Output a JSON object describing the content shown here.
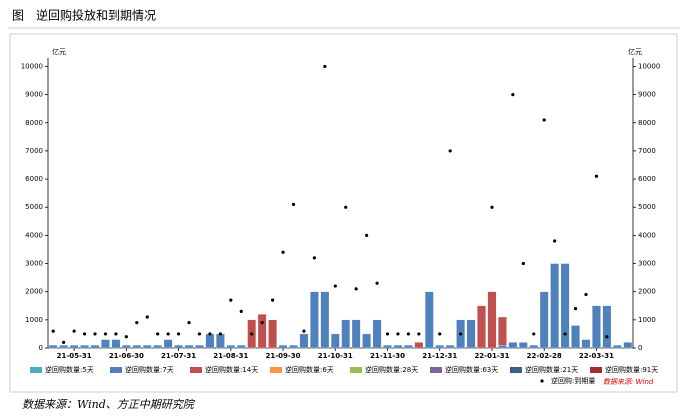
{
  "header": {
    "title": "图　逆回购投放和到期情况"
  },
  "chart_data": {
    "type": "bar",
    "y_unit": "亿元",
    "y2_unit": "亿元",
    "source_note": "数据来源: Wind",
    "categories": [
      null,
      null,
      "21-05-31",
      null,
      null,
      null,
      null,
      "21-06-30",
      null,
      null,
      null,
      null,
      "21-07-31",
      null,
      null,
      null,
      null,
      "21-08-31",
      null,
      null,
      null,
      null,
      "21-09-30",
      null,
      null,
      null,
      null,
      "21-10-31",
      null,
      null,
      null,
      null,
      "21-11-30",
      null,
      null,
      null,
      null,
      "21-12-31",
      null,
      null,
      null,
      null,
      "22-01-31",
      null,
      null,
      null,
      null,
      "22-02-28",
      null,
      null,
      null,
      null,
      "22-03-31",
      null,
      null,
      null
    ],
    "ylim": [
      0,
      10300
    ],
    "yticks": [
      0,
      1000,
      2000,
      3000,
      4000,
      5000,
      6000,
      7000,
      8000,
      9000,
      10000
    ],
    "y2lim": [
      0,
      10300
    ],
    "y2ticks": [
      0,
      1000,
      2000,
      3000,
      4000,
      5000,
      6000,
      7000,
      8000,
      9000,
      10000
    ],
    "series": [
      {
        "name": "逆回购数量:5天",
        "color": "#4bacc6",
        "values": [
          null,
          null,
          null,
          null,
          null,
          null,
          null,
          null,
          null,
          null,
          null,
          null,
          null,
          null,
          null,
          null,
          null,
          null,
          null,
          null,
          null,
          null,
          null,
          null,
          null,
          null,
          null,
          null,
          null,
          null,
          null,
          null,
          null,
          null,
          null,
          null,
          null,
          null,
          null,
          null,
          null,
          null,
          null,
          null,
          null,
          null,
          null,
          null,
          null,
          null,
          null,
          null,
          null,
          null,
          null,
          null
        ]
      },
      {
        "name": "逆回购数量:7天",
        "color": "#4f81bd",
        "values": [
          100,
          100,
          100,
          100,
          100,
          300,
          300,
          100,
          100,
          100,
          100,
          300,
          100,
          100,
          100,
          500,
          500,
          100,
          100,
          null,
          null,
          null,
          100,
          100,
          500,
          2000,
          2000,
          500,
          1000,
          1000,
          500,
          1000,
          100,
          100,
          100,
          null,
          2000,
          100,
          100,
          1000,
          1000,
          null,
          null,
          100,
          200,
          200,
          100,
          2000,
          3000,
          3000,
          800,
          300,
          1500,
          1500,
          100,
          200
        ]
      },
      {
        "name": "逆回购数量:14天",
        "color": "#c0504d",
        "values": [
          null,
          null,
          null,
          null,
          null,
          null,
          null,
          null,
          null,
          null,
          null,
          null,
          null,
          null,
          null,
          null,
          null,
          null,
          null,
          1000,
          1200,
          1000,
          null,
          null,
          null,
          null,
          null,
          null,
          null,
          null,
          null,
          null,
          null,
          null,
          null,
          200,
          null,
          null,
          null,
          null,
          null,
          1500,
          2000,
          1000,
          null,
          null,
          null,
          null,
          null,
          null,
          null,
          null,
          null,
          null,
          null,
          null
        ]
      },
      {
        "name": "逆回购数量:6天",
        "color": "#f79646",
        "values": [
          null,
          null,
          null,
          null,
          null,
          null,
          null,
          null,
          null,
          null,
          null,
          null,
          null,
          null,
          null,
          null,
          null,
          null,
          null,
          null,
          null,
          null,
          null,
          null,
          null,
          null,
          null,
          null,
          null,
          null,
          null,
          null,
          null,
          null,
          null,
          null,
          null,
          null,
          null,
          null,
          null,
          null,
          null,
          null,
          null,
          null,
          null,
          null,
          null,
          null,
          null,
          null,
          null,
          null,
          null,
          null
        ]
      },
      {
        "name": "逆回购数量:28天",
        "color": "#9bbb59",
        "values": [
          null,
          null,
          null,
          null,
          null,
          null,
          null,
          null,
          null,
          null,
          null,
          null,
          null,
          null,
          null,
          null,
          null,
          null,
          null,
          null,
          null,
          null,
          null,
          null,
          null,
          null,
          null,
          null,
          null,
          null,
          null,
          null,
          null,
          null,
          null,
          null,
          null,
          null,
          null,
          null,
          null,
          null,
          null,
          null,
          null,
          null,
          null,
          null,
          null,
          null,
          null,
          null,
          null,
          null,
          null,
          null
        ]
      },
      {
        "name": "逆回购数量:63天",
        "color": "#8064a2",
        "values": [
          null,
          null,
          null,
          null,
          null,
          null,
          null,
          null,
          null,
          null,
          null,
          null,
          null,
          null,
          null,
          null,
          null,
          null,
          null,
          null,
          null,
          null,
          null,
          null,
          null,
          null,
          null,
          null,
          null,
          null,
          null,
          null,
          null,
          null,
          null,
          null,
          null,
          null,
          null,
          null,
          null,
          null,
          null,
          null,
          null,
          null,
          null,
          null,
          null,
          null,
          null,
          null,
          null,
          null,
          null,
          null
        ]
      },
      {
        "name": "逆回购数量:21天",
        "color": "#3a5f8f",
        "values": [
          null,
          null,
          null,
          null,
          null,
          null,
          null,
          null,
          null,
          null,
          null,
          null,
          null,
          null,
          null,
          null,
          null,
          null,
          null,
          null,
          null,
          null,
          null,
          null,
          null,
          null,
          null,
          null,
          null,
          null,
          null,
          null,
          null,
          null,
          null,
          null,
          null,
          null,
          null,
          null,
          null,
          null,
          null,
          null,
          null,
          null,
          null,
          null,
          null,
          null,
          null,
          null,
          null,
          null,
          null,
          null
        ]
      },
      {
        "name": "逆回购数量:91天",
        "color": "#a0302e",
        "values": [
          null,
          null,
          null,
          null,
          null,
          null,
          null,
          null,
          null,
          null,
          null,
          null,
          null,
          null,
          null,
          null,
          null,
          null,
          null,
          null,
          null,
          null,
          null,
          null,
          null,
          null,
          null,
          null,
          null,
          null,
          null,
          null,
          null,
          null,
          null,
          null,
          null,
          null,
          null,
          null,
          null,
          null,
          null,
          null,
          null,
          null,
          null,
          null,
          null,
          null,
          null,
          null,
          null,
          null,
          null,
          null
        ]
      },
      {
        "name": "逆回购:到期量",
        "color": "#000000",
        "kind": "scatter",
        "values": [
          600,
          200,
          600,
          500,
          500,
          500,
          500,
          400,
          900,
          1100,
          500,
          500,
          500,
          900,
          500,
          500,
          500,
          1700,
          1300,
          500,
          900,
          1700,
          3400,
          5100,
          600,
          3200,
          10000,
          2200,
          5000,
          2100,
          4000,
          2300,
          500,
          500,
          500,
          500,
          null,
          500,
          7000,
          500,
          null,
          null,
          5000,
          null,
          9000,
          3000,
          500,
          8100,
          3800,
          500,
          1400,
          1900,
          6100,
          400,
          null,
          null
        ]
      }
    ]
  },
  "footer": {
    "source": "数据来源：Wind、方正中期研究院"
  }
}
